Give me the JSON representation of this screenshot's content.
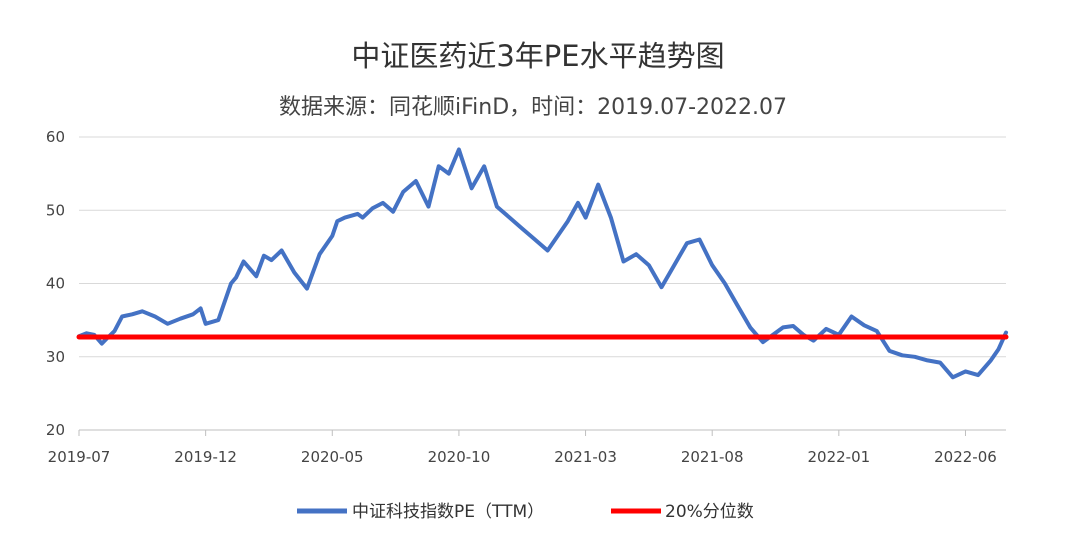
{
  "chart_data": {
    "type": "line",
    "title": "中证医药近3年PE水平趋势图",
    "subtitle": "数据来源：同花顺iFinD，时间：2019.07-2022.07",
    "xlabel": "",
    "ylabel": "",
    "ylim": [
      20,
      60
    ],
    "yticks": [
      "60",
      "50",
      "40",
      "30",
      "20"
    ],
    "xticks": [
      "2019-07",
      "2019-12",
      "2020-05",
      "2020-10",
      "2021-03",
      "2021-08",
      "2022-01",
      "2022-06"
    ],
    "grid": true,
    "legend_position": "bottom",
    "series": [
      {
        "name": "中证科技指数PE（TTM）",
        "color": "#4472c4",
        "x": [
          0,
          0.3,
          0.6,
          0.9,
          1.1,
          1.4,
          1.7,
          2.1,
          2.5,
          3.0,
          3.5,
          4.0,
          4.5,
          4.8,
          5.0,
          5.5,
          6.0,
          6.2,
          6.5,
          7.0,
          7.3,
          7.6,
          8.0,
          8.5,
          9.0,
          9.5,
          10.0,
          10.2,
          10.5,
          11.0,
          11.2,
          11.6,
          12.0,
          12.4,
          12.8,
          13.3,
          13.8,
          14.2,
          14.6,
          15.0,
          15.5,
          16.0,
          16.5,
          17.0,
          17.5,
          18.0,
          18.5,
          19.0,
          19.3,
          19.7,
          20.0,
          20.5,
          21.0,
          21.5,
          22.0,
          22.5,
          23.0,
          23.5,
          24.0,
          24.5,
          25.0,
          25.5,
          26.0,
          26.5,
          27.0,
          27.4,
          27.8,
          28.2,
          28.6,
          29.0,
          29.5,
          30.0,
          30.5,
          31.0,
          31.5,
          32.0,
          32.5,
          33.0,
          33.5,
          34.0,
          34.5,
          35.0,
          35.5,
          36.0,
          36.3,
          36.6
        ],
        "values": [
          32.8,
          33.2,
          33.0,
          31.8,
          32.5,
          33.5,
          35.5,
          35.8,
          36.2,
          35.5,
          34.5,
          35.2,
          35.8,
          36.6,
          34.5,
          35.0,
          40.0,
          40.8,
          43.0,
          41.0,
          43.8,
          43.2,
          44.5,
          41.5,
          39.3,
          44.0,
          46.5,
          48.5,
          49.0,
          49.5,
          49.0,
          50.3,
          51.0,
          49.8,
          52.5,
          54.0,
          50.5,
          56.0,
          55.0,
          58.3,
          53.0,
          56.0,
          50.5,
          49.0,
          47.5,
          46.0,
          44.5,
          47.0,
          48.5,
          51.0,
          49.0,
          53.5,
          49.0,
          43.0,
          44.0,
          42.5,
          39.5,
          42.5,
          45.5,
          46.0,
          42.5,
          40.0,
          37.0,
          34.0,
          32.0,
          33.0,
          34.0,
          34.2,
          33.0,
          32.2,
          33.8,
          33.0,
          35.5,
          34.3,
          33.5,
          30.8,
          30.2,
          30.0,
          29.5,
          29.2,
          27.2,
          28.0,
          27.5,
          29.5,
          31.0,
          33.3
        ]
      },
      {
        "name": "20%分位数",
        "color": "#ff0000",
        "x": [
          0,
          36.6
        ],
        "values": [
          32.7,
          32.7
        ]
      }
    ]
  }
}
